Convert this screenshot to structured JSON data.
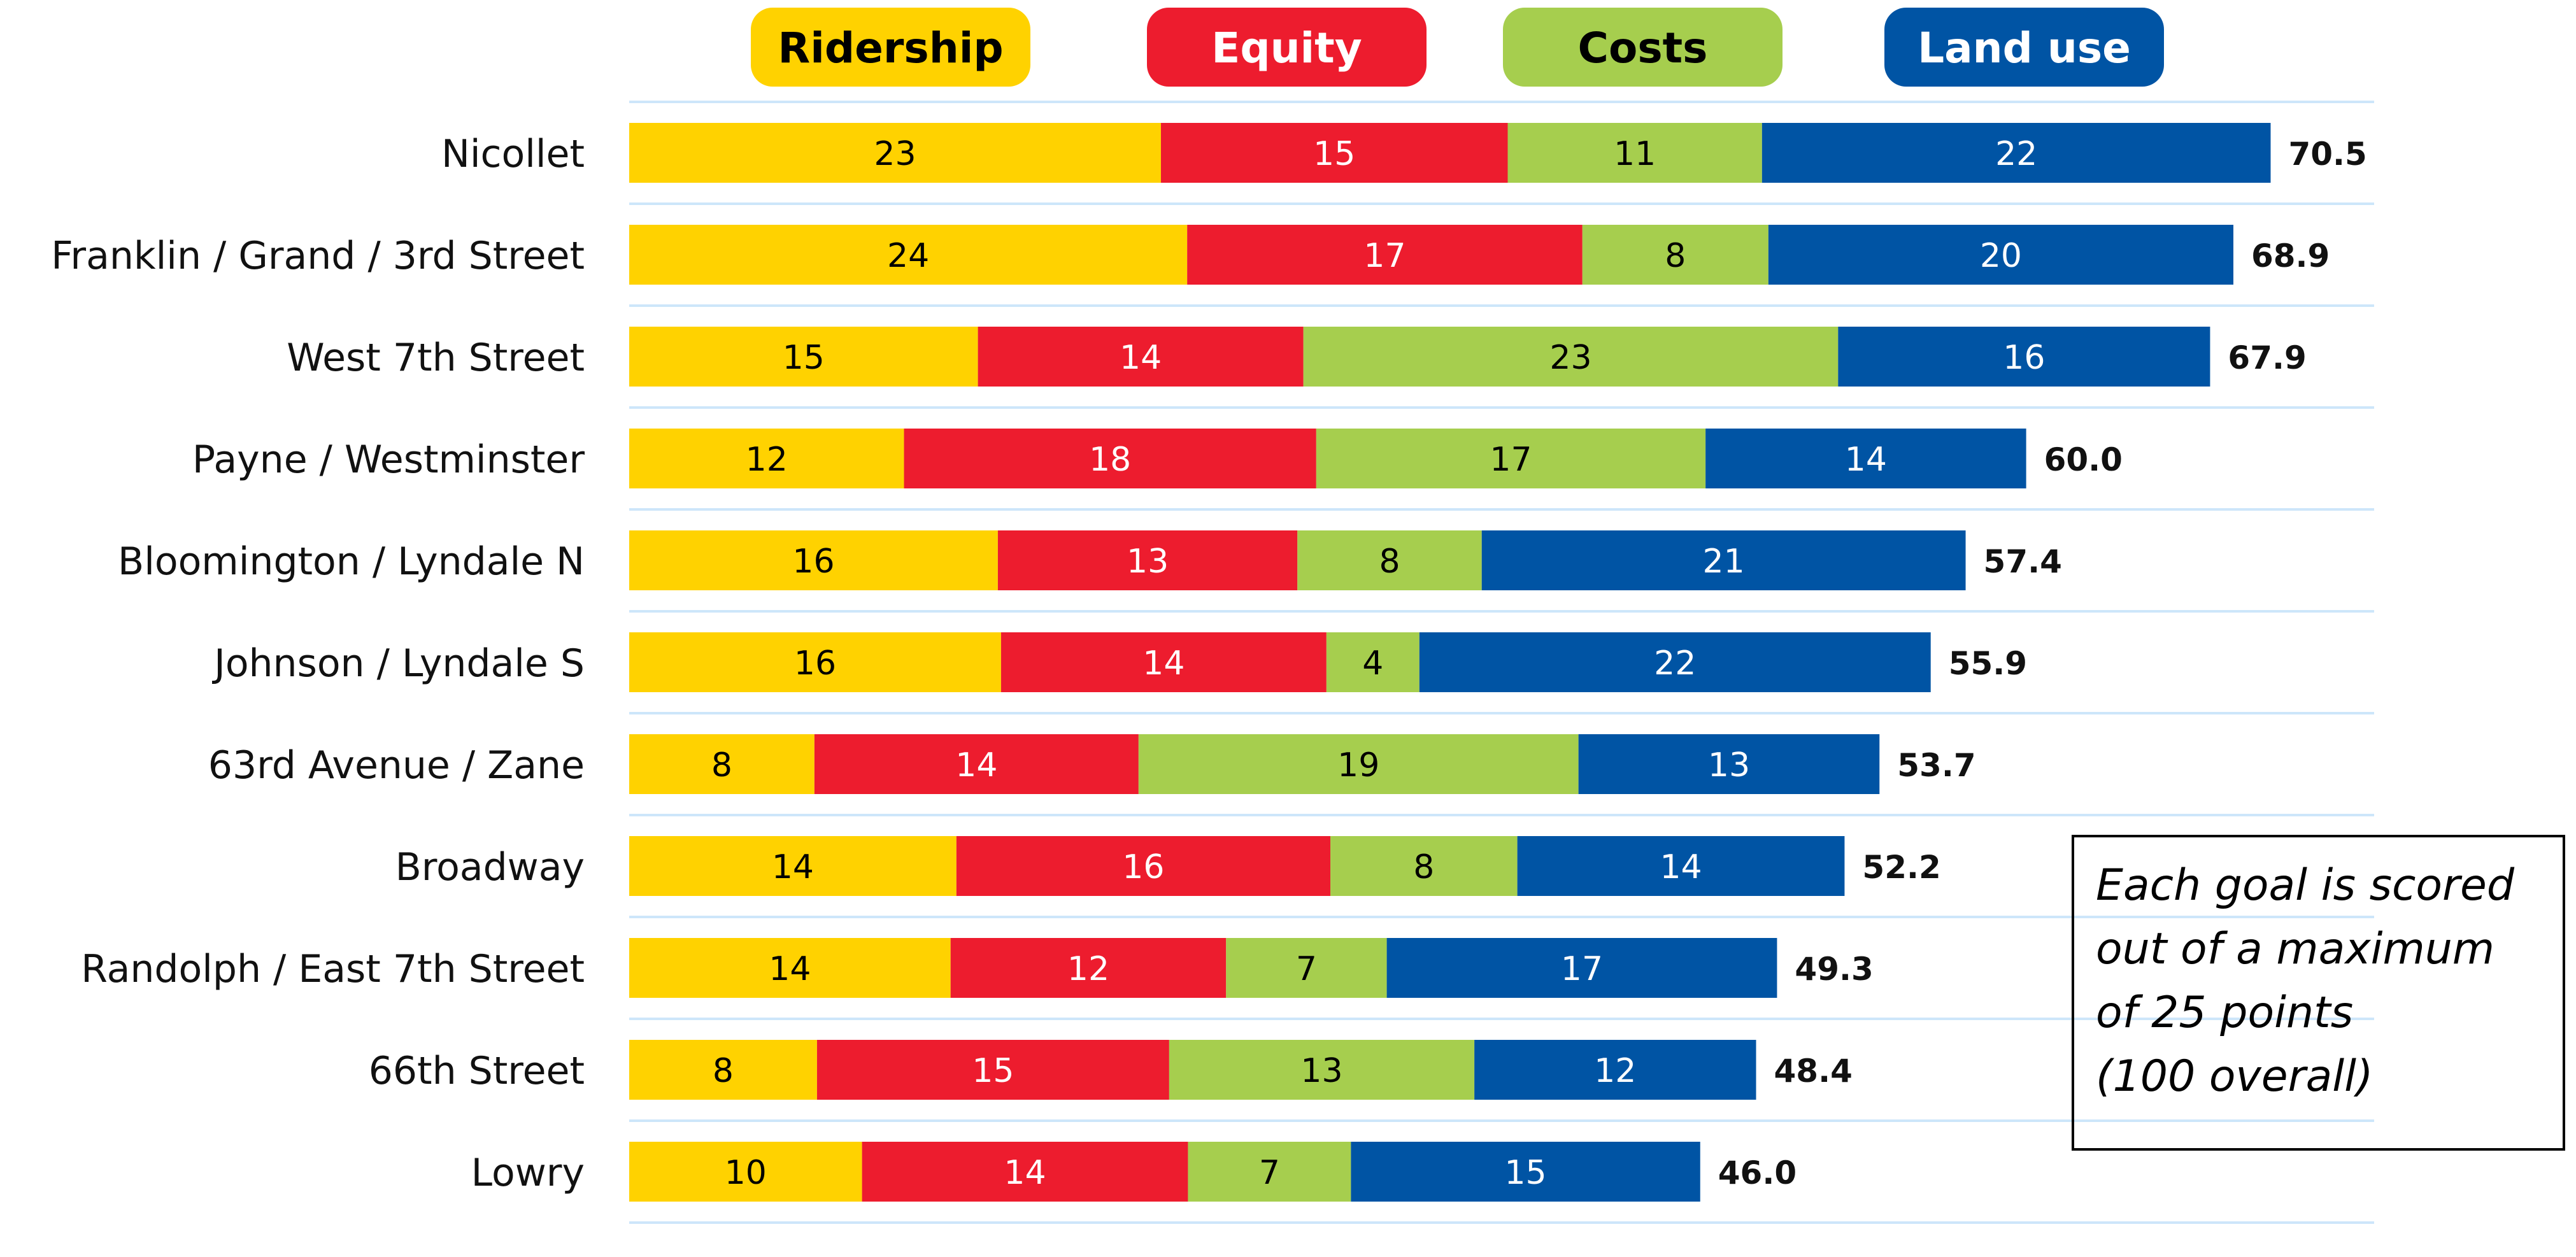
{
  "chart_data": {
    "type": "bar",
    "orientation": "horizontal",
    "stacked": true,
    "legend_placement": "top",
    "grid": true,
    "categories": [
      "Nicollet",
      "Franklin / Grand / 3rd Street",
      "West 7th Street",
      "Payne / Westminster",
      "Bloomington / Lyndale N",
      "Johnson / Lyndale S",
      "63rd Avenue / Zane",
      "Broadway",
      "Randolph / East 7th Street",
      "66th Street",
      "Lowry"
    ],
    "series": [
      {
        "name": "Ridership",
        "color": "#FFD200",
        "text_color": "#000000",
        "values": [
          23,
          24,
          15,
          12,
          16,
          16,
          8,
          14,
          14,
          8,
          10
        ]
      },
      {
        "name": "Equity",
        "color": "#ED1C2E",
        "text_color": "#FFFFFF",
        "values": [
          15,
          17,
          14,
          18,
          13,
          14,
          14,
          16,
          12,
          15,
          14
        ]
      },
      {
        "name": "Costs",
        "color": "#A6CE4E",
        "text_color": "#000000",
        "values": [
          11,
          8,
          23,
          17,
          8,
          4,
          19,
          8,
          7,
          13,
          7
        ]
      },
      {
        "name": "Land use",
        "color": "#0054A4",
        "text_color": "#FFFFFF",
        "values": [
          22,
          20,
          16,
          14,
          21,
          22,
          13,
          14,
          17,
          12,
          15
        ]
      }
    ],
    "totals": [
      "70.5",
      "68.9",
      "67.9",
      "60.0",
      "57.4",
      "55.9",
      "53.7",
      "52.2",
      "49.3",
      "48.4",
      "46.0"
    ],
    "annotation": "Each goal is scored out of a maximum of 25 points (100 overall)"
  },
  "note_lines": [
    "Each goal is scored",
    "out of a maximum",
    "of 25 points",
    "(100 overall)"
  ]
}
